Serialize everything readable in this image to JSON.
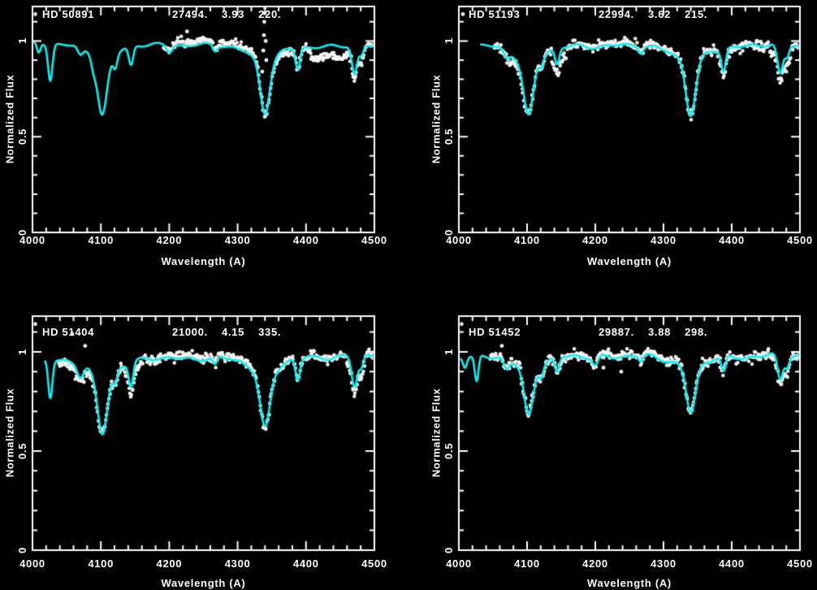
{
  "figure": {
    "background": "#000000",
    "frame_color": "#ffffff",
    "description_colors": {
      "model_fit": "#0af0f2",
      "observed_points": "#f5f5f5"
    }
  },
  "axes": {
    "xlabel": "Wavelength (A)",
    "ylabel": "Normalized Flux",
    "xlim": [
      4000,
      4500
    ],
    "ylim": [
      0,
      1.18
    ],
    "xticks": [
      {
        "v": 4000,
        "label": "4000"
      },
      {
        "v": 4100,
        "label": "4100"
      },
      {
        "v": 4200,
        "label": "4200"
      },
      {
        "v": 4300,
        "label": "4300"
      },
      {
        "v": 4400,
        "label": "4400"
      },
      {
        "v": 4500,
        "label": "4500"
      }
    ],
    "yticks": [
      {
        "v": 0,
        "label": "0"
      },
      {
        "v": 0.5,
        "label": "0.5"
      },
      {
        "v": 1,
        "label": "1"
      }
    ],
    "x_minor_step": 20,
    "y_minor_step": 0.1,
    "grid": false
  },
  "chart_data": [
    {
      "type": "line",
      "star": "HD 50891",
      "params": [
        "27494.",
        "3.93",
        "220."
      ],
      "series": [
        {
          "name": "model",
          "color": "#0af0f2",
          "range": [
            4000,
            4500
          ],
          "continuum": [
            0.995,
            -4e-05
          ],
          "wiggle": 0.009,
          "seed": 11,
          "lines": [
            [
              4009,
              0.05,
              2.6,
              0
            ],
            [
              4026,
              0.19,
              3.2,
              0
            ],
            [
              4070,
              0.045,
              4,
              0
            ],
            [
              4089,
              0.04,
              3,
              0
            ],
            [
              4102,
              0.37,
              6.5,
              1
            ],
            [
              4121,
              0.07,
              3,
              0
            ],
            [
              4144,
              0.1,
              3.2,
              0
            ],
            [
              4200,
              0.035,
              4,
              0
            ],
            [
              4267,
              0.03,
              3,
              0
            ],
            [
              4340,
              0.355,
              6.5,
              1
            ],
            [
              4388,
              0.11,
              3.2,
              0
            ],
            [
              4471,
              0.15,
              4,
              0
            ],
            [
              4481,
              0.05,
              3,
              0
            ]
          ]
        },
        {
          "name": "observed",
          "color": "#f5f5f5",
          "range": [
            4192,
            4500
          ],
          "noise": 0.011,
          "seed": 21,
          "deviations": [
            [
              4200,
              4332,
              0.018
            ],
            [
              4348,
              4378,
              -0.02
            ],
            [
              4408,
              4455,
              -0.055
            ],
            [
              4460,
              4484,
              -0.03
            ]
          ],
          "extra_points": [
            [
              4004,
              1.14
            ],
            [
              4226,
              1.05
            ],
            [
              4336,
              0.84
            ],
            [
              4337.5,
              0.95
            ],
            [
              4338.5,
              1.03
            ],
            [
              4339,
              1.1
            ],
            [
              4339.5,
              1.145
            ],
            [
              4340,
              1.175
            ],
            [
              4341,
              1.0
            ],
            [
              4342,
              0.9
            ]
          ]
        }
      ]
    },
    {
      "type": "line",
      "star": "HD 51193",
      "params": [
        "22994.",
        "3.62",
        "215."
      ],
      "series": [
        {
          "name": "model",
          "color": "#0af0f2",
          "range": [
            4031,
            4500
          ],
          "continuum": [
            0.982,
            0
          ],
          "wiggle": 0.011,
          "seed": 31,
          "lines": [
            [
              4070,
              0.04,
              4,
              0
            ],
            [
              4102,
              0.37,
              6.8,
              1
            ],
            [
              4121,
              0.05,
              3,
              0
            ],
            [
              4144,
              0.085,
              3.2,
              0
            ],
            [
              4267,
              0.03,
              3,
              0
            ],
            [
              4340,
              0.37,
              6.8,
              1
            ],
            [
              4388,
              0.12,
              3.4,
              0
            ],
            [
              4471,
              0.16,
              4.2,
              0
            ],
            [
              4481,
              0.06,
              3,
              0
            ]
          ]
        },
        {
          "name": "observed",
          "color": "#f5f5f5",
          "range": [
            4052,
            4500
          ],
          "noise": 0.012,
          "seed": 41,
          "deviations": [
            [
              4075,
              4096,
              -0.025
            ],
            [
              4138,
              4156,
              -0.055
            ],
            [
              4160,
              4330,
              0.008
            ],
            [
              4382,
              4398,
              -0.025
            ],
            [
              4458,
              4486,
              -0.045
            ]
          ],
          "extra_points": [
            [
              4006,
              1.14
            ]
          ]
        }
      ]
    },
    {
      "type": "line",
      "star": "HD 51404",
      "params": [
        "21000.",
        "4.15",
        "335."
      ],
      "series": [
        {
          "name": "model",
          "color": "#0af0f2",
          "range": [
            4018,
            4500
          ],
          "continuum": [
            0.968,
            3e-05
          ],
          "wiggle": 0.011,
          "seed": 51,
          "lines": [
            [
              4026,
              0.19,
              3.0,
              0
            ],
            [
              4070,
              0.06,
              4.5,
              0
            ],
            [
              4102,
              0.385,
              6.8,
              1
            ],
            [
              4121,
              0.06,
              3,
              0
            ],
            [
              4144,
              0.12,
              3.2,
              0
            ],
            [
              4267,
              0.04,
              3,
              0
            ],
            [
              4340,
              0.36,
              6.8,
              1
            ],
            [
              4388,
              0.11,
              3.3,
              0
            ],
            [
              4471,
              0.155,
              4.2,
              0
            ],
            [
              4481,
              0.06,
              3,
              0
            ]
          ]
        },
        {
          "name": "observed",
          "color": "#f5f5f5",
          "range": [
            4038,
            4500
          ],
          "noise": 0.012,
          "seed": 61,
          "deviations": [
            [
              4040,
              4096,
              -0.02
            ],
            [
              4136,
              4158,
              -0.045
            ],
            [
              4200,
              4330,
              0.008
            ],
            [
              4460,
              4484,
              -0.03
            ]
          ],
          "extra_points": [
            [
              4004,
              1.14
            ],
            [
              4058,
              1.09
            ],
            [
              4077,
              1.03
            ]
          ]
        }
      ]
    },
    {
      "type": "line",
      "star": "HD 51452",
      "params": [
        "29887.",
        "3.88",
        "298."
      ],
      "series": [
        {
          "name": "model",
          "color": "#0af0f2",
          "range": [
            4000,
            4500
          ],
          "continuum": [
            0.982,
            0
          ],
          "wiggle": 0.012,
          "seed": 71,
          "lines": [
            [
              4009,
              0.045,
              2.5,
              0
            ],
            [
              4026,
              0.135,
              2.8,
              0
            ],
            [
              4070,
              0.05,
              4,
              0
            ],
            [
              4102,
              0.3,
              6.2,
              1
            ],
            [
              4121,
              0.05,
              3,
              0
            ],
            [
              4144,
              0.075,
              3.2,
              0
            ],
            [
              4200,
              0.045,
              4,
              0
            ],
            [
              4267,
              0.03,
              3,
              0
            ],
            [
              4340,
              0.285,
              6.2,
              1
            ],
            [
              4388,
              0.08,
              3.2,
              0
            ],
            [
              4471,
              0.125,
              4,
              0
            ],
            [
              4481,
              0.05,
              3,
              0
            ]
          ]
        },
        {
          "name": "observed",
          "color": "#f5f5f5",
          "range": [
            4046,
            4500
          ],
          "noise": 0.013,
          "seed": 81,
          "deviations": [
            [
              4055,
              4080,
              0.012
            ],
            [
              4090,
              4112,
              0.015
            ],
            [
              4215,
              4330,
              0.01
            ],
            [
              4462,
              4482,
              -0.028
            ]
          ],
          "extra_points": [
            [
              4004,
              1.14
            ],
            [
              4063,
              1.03
            ],
            [
              4212,
              0.92
            ],
            [
              4238,
              0.9
            ],
            [
              4310,
              0.95
            ],
            [
              4356,
              0.93
            ]
          ]
        }
      ]
    }
  ]
}
